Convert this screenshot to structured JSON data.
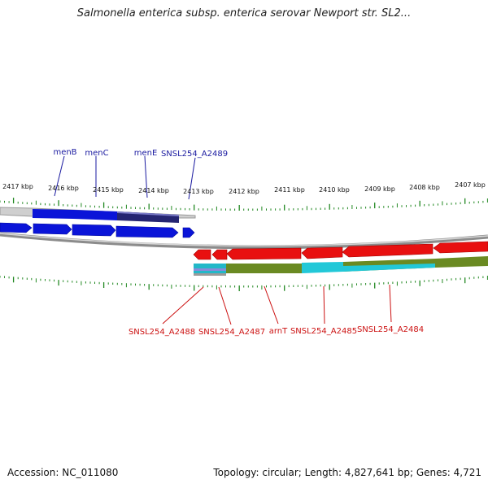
{
  "title": "Salmonella enterica subsp. enterica serovar Newport str. SL2...",
  "footer": {
    "accession": "Accession: NC_011080",
    "summary": "Topology: circular; Length: 4,827,641 bp; Genes: 4,721"
  },
  "colors": {
    "forward_gene": "#0a14d8",
    "forward_gene_dark": "#1a1a66",
    "reverse_gene": "#e81010",
    "gc_cyan": "#22c8d8",
    "gc_olive": "#6a8a22",
    "backbone": "#999999",
    "tick": "#228822",
    "forward_label": "#1a1aa0",
    "reverse_label": "#cc1111"
  },
  "scale_labels": [
    "2417 kbp",
    "2416 kbp",
    "2415 kbp",
    "2414 kbp",
    "2413 kbp",
    "2412 kbp",
    "2411 kbp",
    "2410 kbp",
    "2409 kbp",
    "2408 kbp",
    "2407 kbp"
  ],
  "forward_labels": [
    "menB",
    "menC",
    "menE",
    "SNSL254_A2489"
  ],
  "reverse_labels": [
    "SNSL254_A2488",
    "SNSL254_A2487",
    "arnT",
    "SNSL254_A2485",
    "SNSL254_A2484"
  ]
}
